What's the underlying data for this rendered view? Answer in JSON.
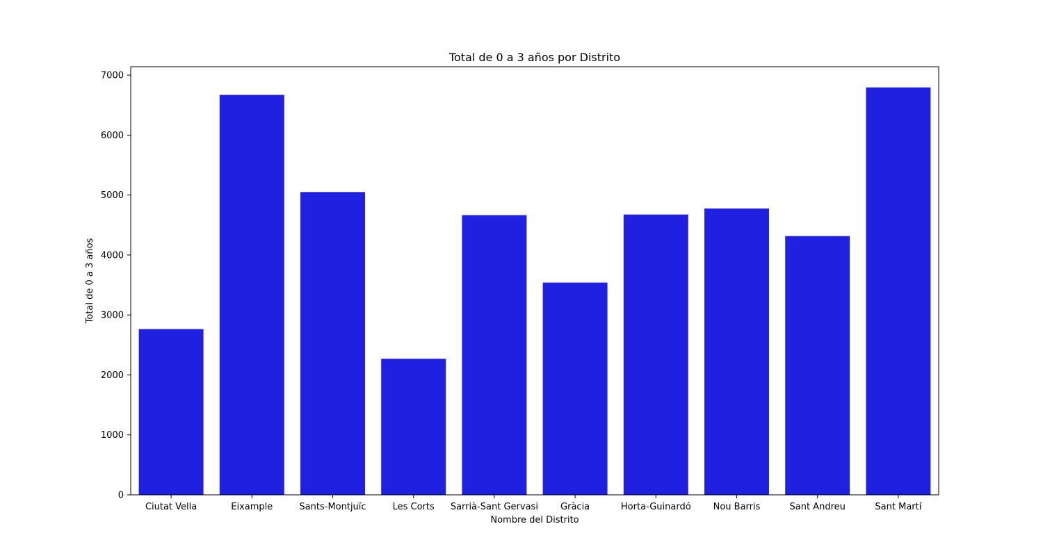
{
  "chart_data": {
    "type": "bar",
    "title": "Total de 0 a 3 años por Distrito",
    "xlabel": "Nombre del Distrito",
    "ylabel": "Total de 0 a 3 años",
    "categories": [
      "Ciutat Vella",
      "Eixample",
      "Sants-Montjuïc",
      "Les Corts",
      "Sarrià-Sant Gervasi",
      "Gràcia",
      "Horta-Guinardó",
      "Nou Barris",
      "Sant Andreu",
      "Sant Martí"
    ],
    "values": [
      2765,
      6670,
      5050,
      2270,
      4665,
      3540,
      4675,
      4775,
      4315,
      6795
    ],
    "ylim": [
      0,
      7140
    ],
    "yticks": [
      0,
      1000,
      2000,
      3000,
      4000,
      5000,
      6000,
      7000
    ],
    "grid": false,
    "legend": "none",
    "bar_color": "#2020e0"
  }
}
